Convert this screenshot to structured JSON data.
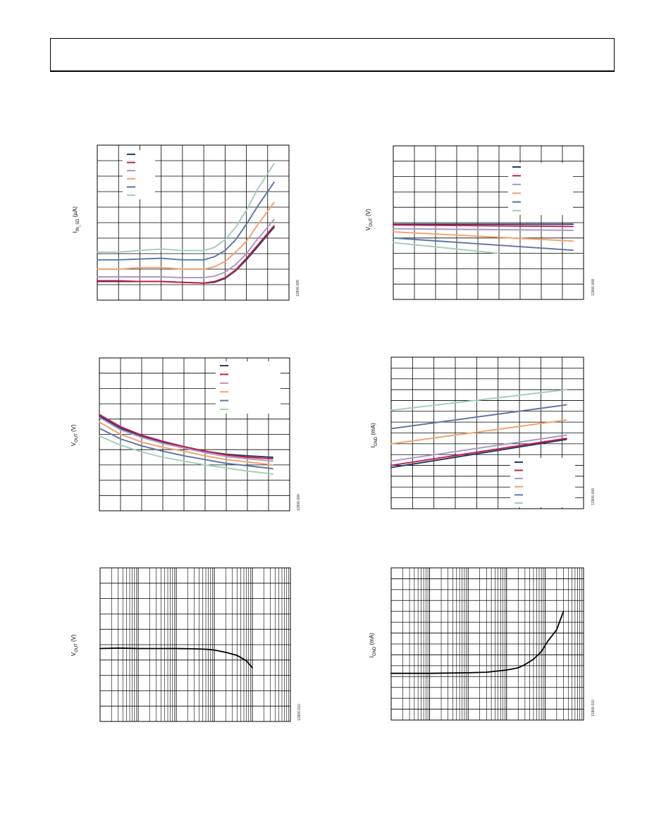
{
  "chart_data": [
    {
      "id": "c1",
      "type": "line",
      "ylabel": "I",
      "ylabel_sub": "IN_SD",
      "ylabel_unit": " (µA)",
      "fignum": "12806-005",
      "xlim": [
        0,
        9
      ],
      "ylim": [
        0,
        10
      ],
      "legend": "top-left",
      "series": [
        {
          "color": "#1f3b66",
          "x": [
            0,
            1,
            2,
            3,
            4,
            5,
            5.5,
            6,
            6.5,
            7,
            7.5,
            8.3
          ],
          "y": [
            1.2,
            1.2,
            1.2,
            1.2,
            1.15,
            1.1,
            1.15,
            1.4,
            1.9,
            2.6,
            3.4,
            4.7
          ]
        },
        {
          "color": "#c8194b",
          "x": [
            0,
            1,
            2,
            3,
            4,
            5,
            5.5,
            6,
            6.5,
            7,
            7.5,
            8.3
          ],
          "y": [
            1.25,
            1.25,
            1.2,
            1.2,
            1.15,
            1.1,
            1.2,
            1.45,
            1.95,
            2.7,
            3.5,
            4.8
          ]
        },
        {
          "color": "#a996c4",
          "x": [
            0,
            1,
            2,
            3,
            4,
            5,
            5.5,
            6,
            6.5,
            7,
            7.5,
            8.3
          ],
          "y": [
            1.5,
            1.5,
            1.5,
            1.5,
            1.45,
            1.45,
            1.55,
            1.8,
            2.3,
            3.0,
            3.9,
            5.2
          ]
        },
        {
          "color": "#f5a06a",
          "x": [
            0,
            1,
            2,
            3,
            4,
            5,
            5.5,
            6,
            6.5,
            7,
            7.5,
            8.3
          ],
          "y": [
            2.0,
            2.0,
            2.1,
            2.1,
            2.0,
            2.0,
            2.15,
            2.5,
            3.1,
            3.8,
            4.8,
            6.3
          ]
        },
        {
          "color": "#5b74a0",
          "x": [
            0,
            1,
            2,
            3,
            4,
            5,
            5.5,
            6,
            6.5,
            7,
            7.5,
            8.3
          ],
          "y": [
            2.6,
            2.6,
            2.65,
            2.7,
            2.6,
            2.6,
            2.8,
            3.2,
            3.9,
            4.9,
            6.0,
            7.6
          ]
        },
        {
          "color": "#9fcfb6",
          "x": [
            0,
            1,
            2,
            3,
            4,
            5,
            5.5,
            6,
            6.5,
            7,
            7.5,
            8.3
          ],
          "y": [
            3.1,
            3.1,
            3.2,
            3.3,
            3.2,
            3.2,
            3.4,
            3.9,
            4.7,
            5.8,
            7.1,
            8.8
          ]
        }
      ]
    },
    {
      "id": "c2",
      "type": "line",
      "ylabel": "V",
      "ylabel_sub": "OUT",
      "ylabel_unit": " (V)",
      "fignum": "12806-008",
      "xlim": [
        0,
        9
      ],
      "ylim": [
        0,
        10
      ],
      "legend": "top-right",
      "series": [
        {
          "color": "#1f3b66",
          "x": [
            0,
            8.5
          ],
          "y": [
            4.9,
            4.9
          ]
        },
        {
          "color": "#c8194b",
          "x": [
            0,
            8.5
          ],
          "y": [
            4.85,
            4.75
          ]
        },
        {
          "color": "#a996c4",
          "x": [
            0,
            8.5
          ],
          "y": [
            4.6,
            4.5
          ]
        },
        {
          "color": "#f5a06a",
          "x": [
            0,
            8.5
          ],
          "y": [
            4.4,
            3.8
          ]
        },
        {
          "color": "#5b74a0",
          "x": [
            0,
            8.5
          ],
          "y": [
            4.0,
            3.2
          ]
        },
        {
          "color": "#9fcfb6",
          "x": [
            0,
            5
          ],
          "y": [
            3.7,
            3.0
          ]
        }
      ]
    },
    {
      "id": "c3",
      "type": "line",
      "ylabel": "V",
      "ylabel_sub": "OUT",
      "ylabel_unit": " (V)",
      "fignum": "12806-006",
      "xlim": [
        0,
        9
      ],
      "ylim": [
        0,
        10
      ],
      "legend": "top-right",
      "series": [
        {
          "color": "#1f3b66",
          "x": [
            0,
            1,
            2,
            3,
            4,
            5,
            6,
            7,
            8.2
          ],
          "y": [
            6.2,
            5.4,
            4.9,
            4.5,
            4.2,
            3.9,
            3.7,
            3.6,
            3.5
          ]
        },
        {
          "color": "#c8194b",
          "x": [
            0,
            1,
            2,
            3,
            4,
            5,
            6,
            7,
            8.2
          ],
          "y": [
            6.3,
            5.5,
            4.95,
            4.55,
            4.2,
            3.9,
            3.65,
            3.5,
            3.4
          ]
        },
        {
          "color": "#a996c4",
          "x": [
            0,
            1,
            2,
            3,
            4,
            5,
            6,
            7,
            8.2
          ],
          "y": [
            6.1,
            5.3,
            4.8,
            4.4,
            4.1,
            3.8,
            3.55,
            3.4,
            3.25
          ]
        },
        {
          "color": "#f5a06a",
          "x": [
            0,
            1,
            2,
            3,
            4,
            5,
            6,
            7,
            8.2
          ],
          "y": [
            5.8,
            5.0,
            4.5,
            4.15,
            3.9,
            3.6,
            3.35,
            3.2,
            3.0
          ]
        },
        {
          "color": "#5b74a0",
          "x": [
            0,
            1,
            2,
            3,
            4,
            5,
            6,
            7,
            8.2
          ],
          "y": [
            5.4,
            4.7,
            4.25,
            3.9,
            3.6,
            3.35,
            3.1,
            2.95,
            2.75
          ]
        },
        {
          "color": "#9fcfb6",
          "x": [
            0,
            1,
            2,
            3,
            4,
            5,
            6,
            7,
            8.2
          ],
          "y": [
            4.9,
            4.3,
            3.85,
            3.5,
            3.25,
            3.0,
            2.8,
            2.6,
            2.4
          ]
        }
      ]
    },
    {
      "id": "c4",
      "type": "line",
      "ylabel": "I",
      "ylabel_sub": "GND",
      "ylabel_unit": " (mA)",
      "fignum": "12806-009",
      "xlim": [
        0,
        9
      ],
      "ylim": [
        0,
        14
      ],
      "legend": "bottom-right",
      "series": [
        {
          "color": "#1f3b66",
          "x": [
            0,
            8.2
          ],
          "y": [
            3.8,
            6.4
          ]
        },
        {
          "color": "#c8194b",
          "x": [
            0,
            8.2
          ],
          "y": [
            4.0,
            6.5
          ]
        },
        {
          "color": "#a996c4",
          "x": [
            0,
            8.2
          ],
          "y": [
            4.4,
            6.8
          ]
        },
        {
          "color": "#f5a06a",
          "x": [
            0,
            8.2
          ],
          "y": [
            6.0,
            8.2
          ]
        },
        {
          "color": "#5b74a0",
          "x": [
            0,
            8.2
          ],
          "y": [
            7.4,
            9.6
          ]
        },
        {
          "color": "#9fcfb6",
          "x": [
            0,
            8.2
          ],
          "y": [
            9.1,
            11.0
          ]
        }
      ]
    },
    {
      "id": "c5",
      "type": "line",
      "ylabel": "V",
      "ylabel_sub": "OUT",
      "ylabel_unit": " (V)",
      "fignum": "12806-010",
      "xscale": "log",
      "xlim": [
        0.001,
        100
      ],
      "ylim": [
        0,
        10
      ],
      "series": [
        {
          "color": "#000000",
          "x": [
            0.001,
            0.003,
            0.01,
            0.03,
            0.1,
            0.3,
            0.6,
            1,
            2,
            4,
            7,
            10
          ],
          "y": [
            4.75,
            4.78,
            4.75,
            4.75,
            4.75,
            4.73,
            4.7,
            4.65,
            4.5,
            4.3,
            3.95,
            3.5
          ]
        }
      ]
    },
    {
      "id": "c6",
      "type": "line",
      "ylabel": "I",
      "ylabel_sub": "GND",
      "ylabel_unit": " (mA)",
      "fignum": "12806-010",
      "xscale": "log",
      "xlim": [
        0.001,
        100
      ],
      "ylim": [
        0,
        14
      ],
      "series": [
        {
          "color": "#000000",
          "x": [
            0.001,
            0.01,
            0.1,
            0.3,
            1,
            2,
            3,
            5,
            8,
            12,
            20,
            30
          ],
          "y": [
            4.3,
            4.3,
            4.35,
            4.4,
            4.6,
            4.8,
            5.1,
            5.6,
            6.3,
            7.3,
            8.3,
            10.0
          ]
        }
      ]
    }
  ]
}
